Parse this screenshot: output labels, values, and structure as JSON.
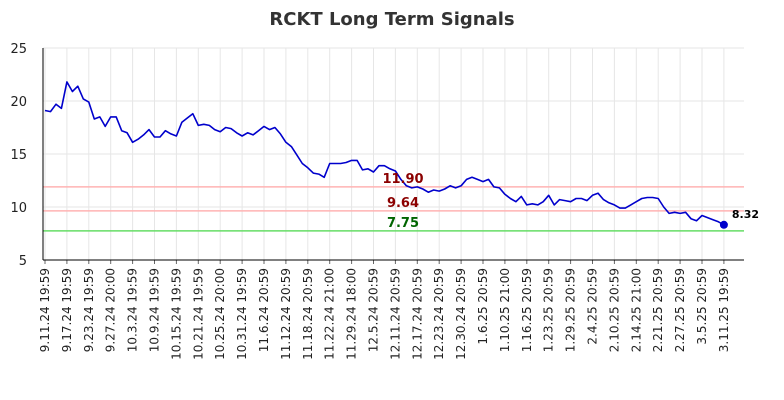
{
  "chart_data": {
    "type": "line",
    "title": "RCKT Long Term Signals",
    "xlabel": "",
    "ylabel": "",
    "ylim": [
      5,
      25
    ],
    "yticks": [
      5,
      10,
      15,
      20,
      25
    ],
    "grid": true,
    "x_tick_labels": [
      "9.11.24 19:59",
      "9.17.24 19:59",
      "9.23.24 19:59",
      "9.27.24 20:00",
      "10.3.24 19:59",
      "10.9.24 19:59",
      "10.15.24 19:59",
      "10.21.24 19:59",
      "10.25.24 20:00",
      "10.31.24 19:59",
      "11.6.24 20:59",
      "11.12.24 20:59",
      "11.18.24 20:59",
      "11.22.24 21:00",
      "11.29.24 18:00",
      "12.5.24 20:59",
      "12.11.24 20:59",
      "12.17.24 20:59",
      "12.23.24 20:59",
      "12.30.24 20:59",
      "1.6.25 20:59",
      "1.10.25 21:00",
      "1.16.25 20:59",
      "1.23.25 20:59",
      "1.29.25 20:59",
      "2.4.25 20:59",
      "2.10.25 20:59",
      "2.14.25 21:00",
      "2.21.25 20:59",
      "2.27.25 20:59",
      "3.5.25 20:59",
      "3.11.25 19:59"
    ],
    "series": [
      {
        "color": "#0000cc",
        "values": [
          19.1,
          19.0,
          19.7,
          19.3,
          21.8,
          20.9,
          21.4,
          20.2,
          19.9,
          18.3,
          18.5,
          17.6,
          18.5,
          18.5,
          17.2,
          17.0,
          16.1,
          16.4,
          16.8,
          17.3,
          16.6,
          16.6,
          17.2,
          16.9,
          16.7,
          18.0,
          18.4,
          18.8,
          17.7,
          17.8,
          17.7,
          17.3,
          17.1,
          17.5,
          17.4,
          17.0,
          16.7,
          17.0,
          16.8,
          17.2,
          17.6,
          17.3,
          17.5,
          16.9,
          16.1,
          15.7,
          14.9,
          14.1,
          13.7,
          13.2,
          13.1,
          12.8,
          14.1,
          14.1,
          14.1,
          14.2,
          14.4,
          14.4,
          13.5,
          13.6,
          13.3,
          13.9,
          13.9,
          13.6,
          13.4,
          12.6,
          12.0,
          11.8,
          11.9,
          11.7,
          11.4,
          11.6,
          11.5,
          11.7,
          12.0,
          11.8,
          12.0,
          12.6,
          12.8,
          12.6,
          12.4,
          12.6,
          11.9,
          11.8,
          11.2,
          10.8,
          10.5,
          11.0,
          10.2,
          10.3,
          10.2,
          10.5,
          11.1,
          10.2,
          10.7,
          10.6,
          10.5,
          10.8,
          10.8,
          10.6,
          11.1,
          11.3,
          10.7,
          10.4,
          10.2,
          9.9,
          9.9,
          10.2,
          10.5,
          10.8,
          10.9,
          10.9,
          10.8,
          10.0,
          9.4,
          9.5,
          9.4,
          9.5,
          8.9,
          8.7,
          9.2,
          9.0,
          8.8,
          8.6,
          8.32
        ]
      }
    ],
    "last_value": {
      "value": 8.32,
      "label": "8.32",
      "color": "#0000cc"
    },
    "horizontal_lines": [
      {
        "value": 11.9,
        "label": "11.90",
        "line_color": "#ffb3b3",
        "label_color": "#8b0000"
      },
      {
        "value": 9.64,
        "label": "9.64",
        "line_color": "#ffb3b3",
        "label_color": "#8b0000"
      },
      {
        "value": 7.75,
        "label": "7.75",
        "line_color": "#66dd66",
        "label_color": "#006400"
      }
    ],
    "axis_color": "#000000",
    "grid_color": "#e6e6e6"
  }
}
